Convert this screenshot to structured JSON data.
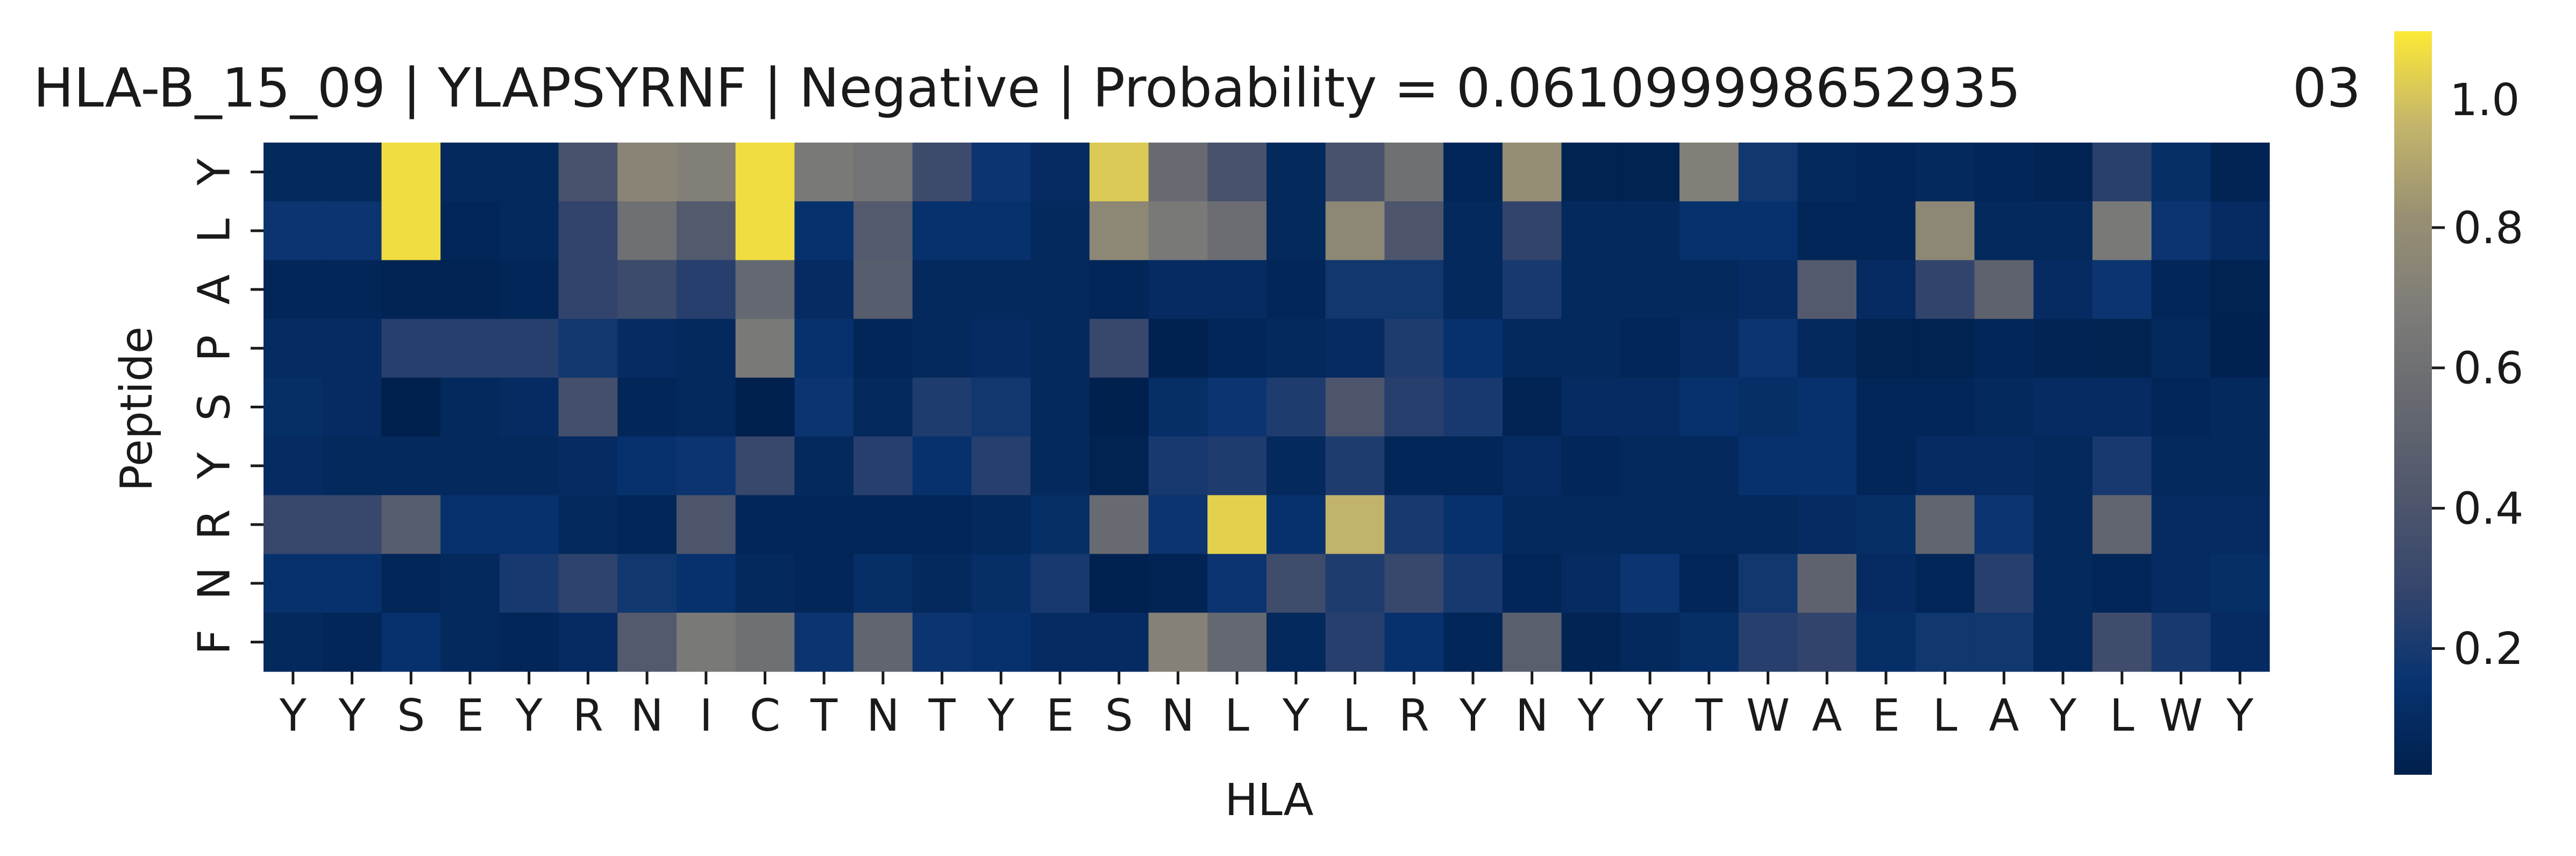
{
  "chart_data": {
    "type": "heatmap",
    "title": "HLA-B_15_09 | YLAPSYRNF | Negative | Probability = 0.061099998652935",
    "title_overflow_text": "03",
    "xlabel": "HLA",
    "ylabel": "Peptide",
    "x_categories": [
      "Y",
      "Y",
      "S",
      "E",
      "Y",
      "R",
      "N",
      "I",
      "C",
      "T",
      "N",
      "T",
      "Y",
      "E",
      "S",
      "N",
      "L",
      "Y",
      "L",
      "R",
      "Y",
      "N",
      "Y",
      "Y",
      "T",
      "W",
      "A",
      "E",
      "L",
      "A",
      "Y",
      "L",
      "W",
      "Y"
    ],
    "y_categories": [
      "Y",
      "L",
      "A",
      "P",
      "S",
      "Y",
      "R",
      "N",
      "F"
    ],
    "colormap": "cividis",
    "colorbar": {
      "range": [
        0.02,
        1.08
      ],
      "ticks": [
        0.2,
        0.4,
        0.6,
        0.8
      ],
      "top_label": "1.0"
    },
    "values": [
      [
        0.08,
        0.08,
        1.05,
        0.08,
        0.08,
        0.38,
        0.74,
        0.7,
        1.05,
        0.66,
        0.62,
        0.32,
        0.16,
        0.1,
        1.0,
        0.56,
        0.38,
        0.08,
        0.38,
        0.6,
        0.06,
        0.8,
        0.04,
        0.04,
        0.7,
        0.18,
        0.08,
        0.06,
        0.08,
        0.06,
        0.05,
        0.25,
        0.12,
        0.05
      ],
      [
        0.16,
        0.16,
        1.05,
        0.06,
        0.08,
        0.28,
        0.6,
        0.44,
        1.05,
        0.14,
        0.44,
        0.14,
        0.14,
        0.08,
        0.76,
        0.66,
        0.58,
        0.08,
        0.76,
        0.4,
        0.08,
        0.28,
        0.08,
        0.08,
        0.14,
        0.14,
        0.06,
        0.06,
        0.76,
        0.08,
        0.08,
        0.66,
        0.16,
        0.1
      ],
      [
        0.06,
        0.06,
        0.05,
        0.05,
        0.06,
        0.28,
        0.32,
        0.24,
        0.54,
        0.1,
        0.46,
        0.08,
        0.08,
        0.08,
        0.06,
        0.1,
        0.1,
        0.06,
        0.18,
        0.18,
        0.08,
        0.2,
        0.08,
        0.08,
        0.08,
        0.1,
        0.44,
        0.1,
        0.28,
        0.5,
        0.1,
        0.16,
        0.06,
        0.04
      ],
      [
        0.1,
        0.1,
        0.24,
        0.24,
        0.24,
        0.18,
        0.1,
        0.08,
        0.66,
        0.14,
        0.06,
        0.08,
        0.1,
        0.08,
        0.3,
        0.03,
        0.06,
        0.08,
        0.1,
        0.22,
        0.14,
        0.08,
        0.08,
        0.06,
        0.1,
        0.16,
        0.08,
        0.04,
        0.04,
        0.06,
        0.05,
        0.04,
        0.08,
        0.03
      ],
      [
        0.12,
        0.1,
        0.02,
        0.08,
        0.1,
        0.36,
        0.06,
        0.08,
        0.02,
        0.16,
        0.08,
        0.22,
        0.18,
        0.08,
        0.02,
        0.12,
        0.16,
        0.22,
        0.4,
        0.24,
        0.2,
        0.05,
        0.1,
        0.1,
        0.14,
        0.12,
        0.14,
        0.06,
        0.06,
        0.08,
        0.1,
        0.1,
        0.06,
        0.08
      ],
      [
        0.1,
        0.08,
        0.08,
        0.08,
        0.08,
        0.1,
        0.14,
        0.16,
        0.3,
        0.08,
        0.24,
        0.14,
        0.24,
        0.08,
        0.04,
        0.2,
        0.22,
        0.08,
        0.22,
        0.06,
        0.06,
        0.1,
        0.06,
        0.08,
        0.08,
        0.14,
        0.14,
        0.06,
        0.1,
        0.1,
        0.08,
        0.2,
        0.08,
        0.08
      ],
      [
        0.3,
        0.3,
        0.46,
        0.14,
        0.14,
        0.08,
        0.06,
        0.4,
        0.06,
        0.06,
        0.06,
        0.06,
        0.08,
        0.12,
        0.56,
        0.16,
        1.02,
        0.14,
        0.94,
        0.2,
        0.14,
        0.08,
        0.08,
        0.08,
        0.08,
        0.08,
        0.1,
        0.12,
        0.52,
        0.16,
        0.08,
        0.52,
        0.1,
        0.1
      ],
      [
        0.14,
        0.14,
        0.06,
        0.08,
        0.2,
        0.26,
        0.18,
        0.14,
        0.08,
        0.06,
        0.12,
        0.08,
        0.12,
        0.2,
        0.03,
        0.05,
        0.16,
        0.34,
        0.22,
        0.3,
        0.2,
        0.06,
        0.1,
        0.16,
        0.06,
        0.18,
        0.5,
        0.1,
        0.06,
        0.24,
        0.08,
        0.06,
        0.1,
        0.12
      ],
      [
        0.08,
        0.06,
        0.14,
        0.08,
        0.06,
        0.1,
        0.44,
        0.66,
        0.6,
        0.16,
        0.52,
        0.16,
        0.14,
        0.1,
        0.1,
        0.72,
        0.54,
        0.08,
        0.24,
        0.14,
        0.06,
        0.48,
        0.05,
        0.08,
        0.12,
        0.24,
        0.28,
        0.12,
        0.18,
        0.18,
        0.08,
        0.34,
        0.2,
        0.1
      ]
    ]
  }
}
